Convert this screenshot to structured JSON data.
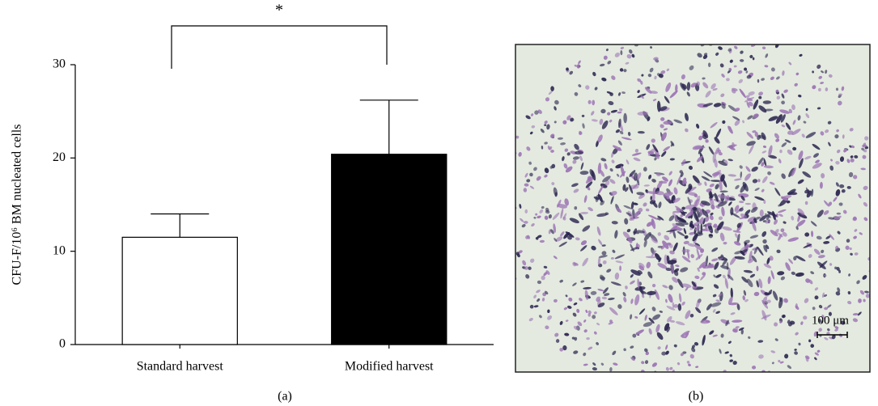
{
  "chart_data": {
    "type": "bar",
    "y_label": "CFU-F/10⁶ BM nucleated cells",
    "categories": [
      "Standard harvest",
      "Modified harvest"
    ],
    "values": [
      11.5,
      20.4
    ],
    "errors": [
      2.5,
      5.8
    ],
    "colors": [
      "#ffffff",
      "#000000"
    ],
    "ylim": [
      0,
      30
    ],
    "yticks": [
      0,
      10,
      20,
      30
    ],
    "annotation": "*",
    "panel_label": "(a)"
  },
  "image_panel": {
    "scale_bar_label": "100 μm",
    "panel_label": "(b)"
  }
}
